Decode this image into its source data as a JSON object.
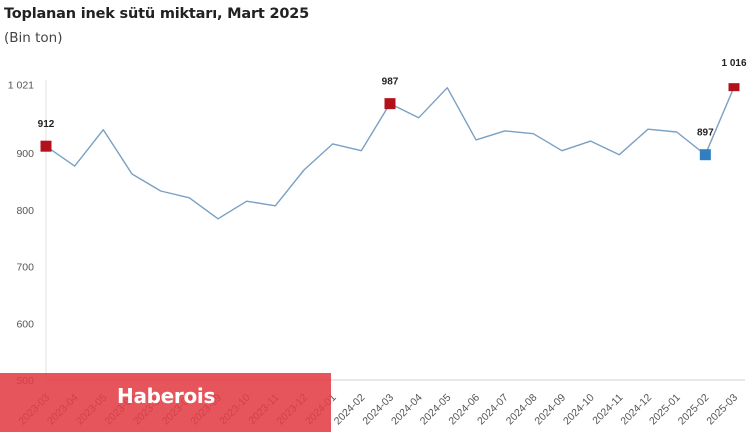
{
  "header": {
    "title": "Toplanan inek sütü miktarı, Mart 2025",
    "subtitle": "(Bin ton)"
  },
  "watermark": {
    "text": "Haberois",
    "color": "#e23e44"
  },
  "colors": {
    "line": "#7aa0c4",
    "highlight_red": "#b3121c",
    "highlight_blue": "#2f7fc1",
    "axis": "#e0e0e0"
  },
  "chart_data": {
    "type": "line",
    "title": "Toplanan inek sütü miktarı, Mart 2025",
    "subtitle": "(Bin ton)",
    "xlabel": "",
    "ylabel": "Bin ton",
    "ylim": [
      500,
      1021
    ],
    "yticks": [
      500,
      600,
      700,
      800,
      900,
      1021
    ],
    "ytick_labels": [
      "500",
      "600",
      "700",
      "800",
      "900",
      "1 021"
    ],
    "grid": false,
    "legend": null,
    "categories": [
      "2023-03",
      "2023-04",
      "2023-05",
      "2023-06",
      "2023-07",
      "2023-08",
      "2023-09",
      "2023-10",
      "2023-11",
      "2023-12",
      "2024-01",
      "2024-02",
      "2024-03",
      "2024-04",
      "2024-05",
      "2024-06",
      "2024-07",
      "2024-08",
      "2024-09",
      "2024-10",
      "2024-11",
      "2024-12",
      "2025-01",
      "2025-02",
      "2025-03"
    ],
    "series": [
      {
        "name": "Toplanan inek sütü miktarı",
        "values": [
          912,
          877,
          941,
          863,
          833,
          821,
          784,
          815,
          807,
          870,
          916,
          904,
          987,
          962,
          1015,
          923,
          939,
          934,
          904,
          921,
          897,
          942,
          937,
          897,
          1016
        ]
      }
    ],
    "annotations": [
      {
        "category": "2023-03",
        "value": 912,
        "label": "912",
        "marker": "red-square"
      },
      {
        "category": "2024-03",
        "value": 987,
        "label": "987",
        "marker": "red-square"
      },
      {
        "category": "2025-02",
        "value": 897,
        "label": "897",
        "marker": "blue-square"
      },
      {
        "category": "2025-03",
        "value": 1016,
        "label": "1 016",
        "marker": "red-square"
      }
    ]
  }
}
